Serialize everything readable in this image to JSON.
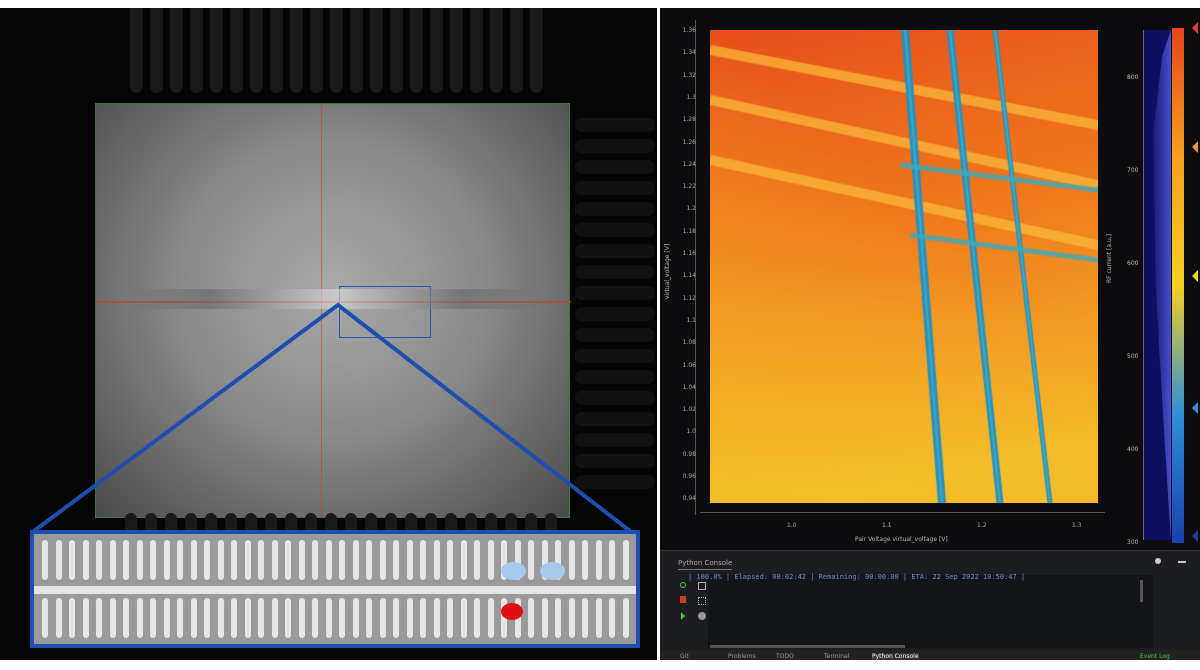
{
  "micrograph": {
    "markers": [
      {
        "color": "#a8c8ee"
      },
      {
        "color": "#a8c8ee"
      },
      {
        "color": "#e01010"
      }
    ],
    "zoom_outline_color": "#1d4fb0"
  },
  "plot": {
    "yticks": [
      "1.36",
      "1.34",
      "1.32",
      "1.3",
      "1.28",
      "1.26",
      "1.24",
      "1.22",
      "1.2",
      "1.18",
      "1.16",
      "1.14",
      "1.12",
      "1.1",
      "1.08",
      "1.06",
      "1.04",
      "1.02",
      "1.0",
      "0.98",
      "0.96",
      "0.94"
    ],
    "xticks": [
      "1.0",
      "1.1",
      "1.2",
      "1.3"
    ],
    "xlabel": "Pair Voltage virtual_voltage [V]",
    "ylabel": "virtual_voltage [V]",
    "colorbar_label": "RF current [a.u.]",
    "colorbar_ticks": [
      "800",
      "700",
      "600",
      "500",
      "400",
      "300"
    ],
    "colormap": [
      "#1a3fae",
      "#2f8fd8",
      "#f5d020",
      "#f5a020",
      "#e8441a"
    ]
  },
  "console": {
    "tab": "Python Console",
    "output": "| 100.0% | Elapsed: 00:02:42 | Remaining: 00:00:00 | ETA: 22 Sep 2022 10:50:47 |",
    "bottom_tabs": [
      "Git",
      "Problems",
      "TODO",
      "Terminal",
      "Python Console"
    ],
    "right_tab": "Event Log"
  }
}
